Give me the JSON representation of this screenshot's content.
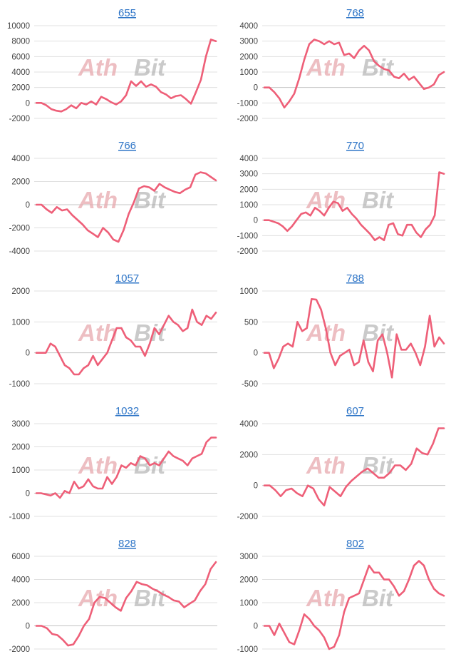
{
  "colors": {
    "series": "#ee5f78",
    "title": "#2e75c7",
    "grid": "#e0e0e0"
  },
  "watermark": {
    "part1": "Ath",
    "part2": "Bit"
  },
  "chart_data": [
    {
      "type": "line",
      "title": "655",
      "ylim": [
        -2000,
        10000
      ],
      "yticks": [
        10000,
        8000,
        6000,
        4000,
        2000,
        0,
        -2000
      ],
      "values": [
        0,
        0,
        -300,
        -800,
        -1000,
        -1100,
        -800,
        -300,
        -700,
        0,
        -200,
        200,
        -200,
        800,
        500,
        100,
        -200,
        200,
        1000,
        2800,
        2200,
        2800,
        2100,
        2400,
        2100,
        1400,
        1100,
        600,
        900,
        1000,
        500,
        -100,
        1400,
        3000,
        6000,
        8200,
        8000
      ]
    },
    {
      "type": "line",
      "title": "768",
      "ylim": [
        -2000,
        4000
      ],
      "yticks": [
        4000,
        3000,
        2000,
        1000,
        0,
        -1000,
        -2000
      ],
      "values": [
        0,
        0,
        -300,
        -700,
        -1300,
        -900,
        -400,
        600,
        1800,
        2800,
        3100,
        3000,
        2800,
        3000,
        2800,
        2900,
        2100,
        2200,
        1900,
        2400,
        2700,
        2400,
        1700,
        1400,
        1200,
        1100,
        700,
        600,
        900,
        500,
        700,
        300,
        -100,
        0,
        200,
        800,
        1000
      ]
    },
    {
      "type": "line",
      "title": "766",
      "ylim": [
        -4000,
        4000
      ],
      "yticks": [
        4000,
        2000,
        0,
        -2000,
        -4000
      ],
      "values": [
        0,
        0,
        -400,
        -700,
        -200,
        -500,
        -400,
        -900,
        -1300,
        -1700,
        -2200,
        -2500,
        -2800,
        -2000,
        -2400,
        -3000,
        -3200,
        -2200,
        -800,
        200,
        1400,
        1600,
        1500,
        1200,
        1800,
        1500,
        1300,
        1100,
        1000,
        1300,
        1500,
        2600,
        2800,
        2700,
        2400,
        2100
      ]
    },
    {
      "type": "line",
      "title": "770",
      "ylim": [
        -2000,
        4000
      ],
      "yticks": [
        4000,
        3000,
        2000,
        1000,
        0,
        -1000,
        -2000
      ],
      "values": [
        0,
        0,
        -100,
        -200,
        -400,
        -700,
        -400,
        0,
        400,
        500,
        300,
        800,
        600,
        300,
        800,
        1200,
        1100,
        600,
        800,
        400,
        100,
        -300,
        -600,
        -900,
        -1300,
        -1100,
        -1300,
        -300,
        -200,
        -900,
        -1000,
        -300,
        -300,
        -800,
        -1100,
        -600,
        -300,
        300,
        3100,
        3000
      ]
    },
    {
      "type": "line",
      "title": "1057",
      "ylim": [
        -1000,
        2000
      ],
      "yticks": [
        2000,
        1000,
        0,
        -1000
      ],
      "values": [
        0,
        0,
        0,
        300,
        200,
        -100,
        -400,
        -500,
        -700,
        -700,
        -500,
        -400,
        -100,
        -400,
        -200,
        0,
        400,
        800,
        800,
        500,
        400,
        200,
        200,
        -100,
        300,
        800,
        600,
        900,
        1200,
        1000,
        900,
        700,
        800,
        1400,
        1000,
        900,
        1200,
        1100,
        1300
      ]
    },
    {
      "type": "line",
      "title": "788",
      "ylim": [
        -500,
        1000
      ],
      "yticks": [
        1000,
        500,
        0,
        -500
      ],
      "values": [
        0,
        0,
        -250,
        -100,
        100,
        150,
        100,
        500,
        350,
        400,
        870,
        860,
        700,
        400,
        0,
        -200,
        -50,
        0,
        50,
        -200,
        -150,
        200,
        -150,
        -300,
        200,
        300,
        0,
        -400,
        300,
        50,
        50,
        150,
        0,
        -200,
        100,
        600,
        100,
        250,
        150
      ]
    },
    {
      "type": "line",
      "title": "1032",
      "ylim": [
        -1000,
        3000
      ],
      "yticks": [
        3000,
        2000,
        1000,
        0,
        -1000
      ],
      "values": [
        0,
        0,
        -50,
        -100,
        0,
        -200,
        100,
        0,
        500,
        200,
        300,
        600,
        300,
        200,
        200,
        700,
        400,
        700,
        1200,
        1100,
        1300,
        1200,
        1600,
        1500,
        1200,
        1300,
        1200,
        1500,
        1800,
        1600,
        1500,
        1400,
        1200,
        1500,
        1600,
        1700,
        2200,
        2400,
        2400
      ]
    },
    {
      "type": "line",
      "title": "607",
      "ylim": [
        -2000,
        4000
      ],
      "yticks": [
        4000,
        2000,
        0,
        -2000
      ],
      "values": [
        0,
        0,
        -300,
        -700,
        -300,
        -200,
        -500,
        -700,
        0,
        -200,
        -900,
        -1300,
        -100,
        -400,
        -700,
        -100,
        300,
        600,
        900,
        1100,
        800,
        500,
        500,
        800,
        1300,
        1300,
        1000,
        1400,
        2400,
        2100,
        2000,
        2700,
        3700,
        3700
      ]
    },
    {
      "type": "line",
      "title": "828",
      "ylim": [
        -2000,
        6000
      ],
      "yticks": [
        6000,
        4000,
        2000,
        0,
        -2000
      ],
      "values": [
        0,
        0,
        -200,
        -700,
        -800,
        -1200,
        -1700,
        -1600,
        -900,
        0,
        600,
        2000,
        2500,
        2400,
        2000,
        1600,
        1300,
        2400,
        3000,
        3800,
        3600,
        3500,
        3200,
        3000,
        2700,
        2500,
        2200,
        2100,
        1600,
        1900,
        2200,
        3000,
        3600,
        4900,
        5500
      ]
    },
    {
      "type": "line",
      "title": "802",
      "ylim": [
        -1000,
        3000
      ],
      "yticks": [
        3000,
        2000,
        1000,
        0,
        -1000
      ],
      "values": [
        0,
        0,
        -400,
        100,
        -300,
        -700,
        -800,
        -200,
        500,
        300,
        0,
        -200,
        -500,
        -1000,
        -900,
        -400,
        600,
        1200,
        1300,
        1400,
        2000,
        2600,
        2300,
        2300,
        2000,
        2000,
        1700,
        1300,
        1500,
        2000,
        2600,
        2800,
        2600,
        2000,
        1600,
        1400,
        1300
      ]
    }
  ]
}
